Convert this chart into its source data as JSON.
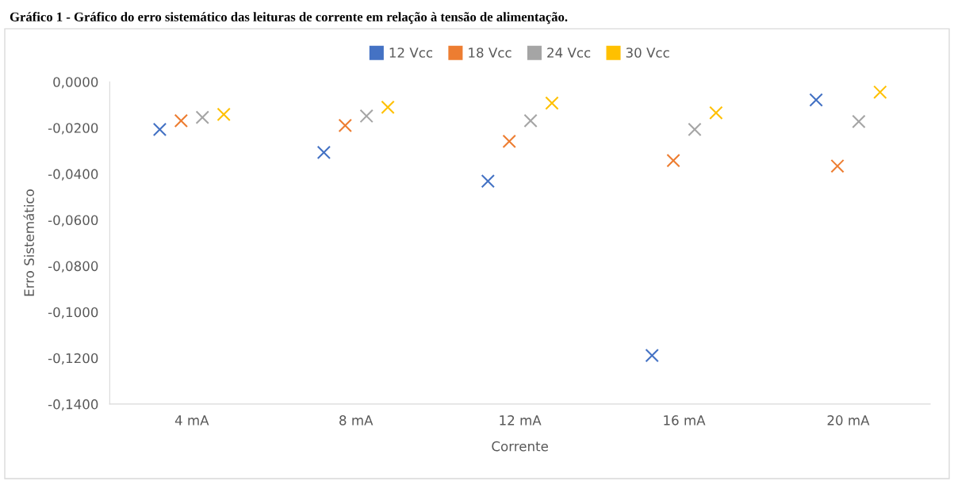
{
  "chart_data": {
    "type": "scatter",
    "title": "Gráfico 1 - Gráfico do erro sistemático das leituras de corrente em relação à tensão de alimentação.",
    "xlabel": "Corrente",
    "ylabel": "Erro Sistemático",
    "categories": [
      "4 mA",
      "8 mA",
      "12 mA",
      "16 mA",
      "20 mA"
    ],
    "series": [
      {
        "name": "12 Vcc",
        "color": "#4472c4",
        "values": [
          -0.0207,
          -0.0307,
          -0.0432,
          -0.1189,
          -0.0079
        ]
      },
      {
        "name": "18 Vcc",
        "color": "#ed7d31",
        "values": [
          -0.0169,
          -0.019,
          -0.0259,
          -0.0342,
          -0.0366
        ]
      },
      {
        "name": "24 Vcc",
        "color": "#a5a5a5",
        "values": [
          -0.0155,
          -0.0149,
          -0.0169,
          -0.0207,
          -0.0173
        ]
      },
      {
        "name": "30 Vcc",
        "color": "#ffc000",
        "values": [
          -0.0142,
          -0.0111,
          -0.0093,
          -0.0135,
          -0.0045
        ]
      }
    ],
    "ylim": [
      -0.14,
      0
    ],
    "yticks": [
      {
        "value": -0.14,
        "label": "-0,1400"
      },
      {
        "value": -0.12,
        "label": "-0,1200"
      },
      {
        "value": -0.1,
        "label": "-0,1000"
      },
      {
        "value": -0.08,
        "label": "-0,0800"
      },
      {
        "value": -0.06,
        "label": "-0,0600"
      },
      {
        "value": -0.04,
        "label": "-0,0400"
      },
      {
        "value": -0.02,
        "label": "-0,0200"
      },
      {
        "value": 0,
        "label": "0,0000"
      }
    ],
    "grid": false,
    "legend": "top",
    "marker": "cross"
  }
}
